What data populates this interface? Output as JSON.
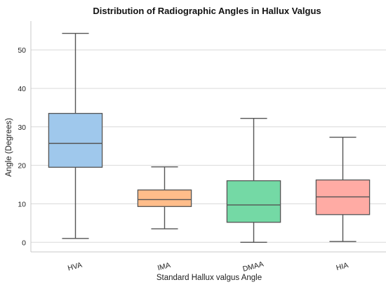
{
  "chart_data": {
    "type": "box",
    "title": "Distribution of Radiographic Angles in Hallux Valgus",
    "xlabel": "Standard Hallux valgus Angle",
    "ylabel": "Angle (Degrees)",
    "ylim": [
      -2.5,
      57.5
    ],
    "yticks": [
      0,
      10,
      20,
      30,
      40,
      50
    ],
    "grid": "horizontal",
    "categories": [
      "HVA",
      "IMA",
      "DMAA",
      "HIA"
    ],
    "boxes": [
      {
        "category": "HVA",
        "min": 1,
        "q1": 19.5,
        "median": 25.7,
        "q3": 33.5,
        "max": 54.3
      },
      {
        "category": "IMA",
        "min": 3.5,
        "q1": 9.3,
        "median": 11.1,
        "q3": 13.6,
        "max": 19.6
      },
      {
        "category": "DMAA",
        "min": 0,
        "q1": 5.2,
        "median": 9.7,
        "q3": 16.0,
        "max": 32.2
      },
      {
        "category": "HIA",
        "min": 0.2,
        "q1": 7.2,
        "median": 11.8,
        "q3": 16.2,
        "max": 27.3
      }
    ],
    "colors": [
      "#9fc8ec",
      "#ffbd8a",
      "#74d9a5",
      "#ffaba4"
    ]
  }
}
